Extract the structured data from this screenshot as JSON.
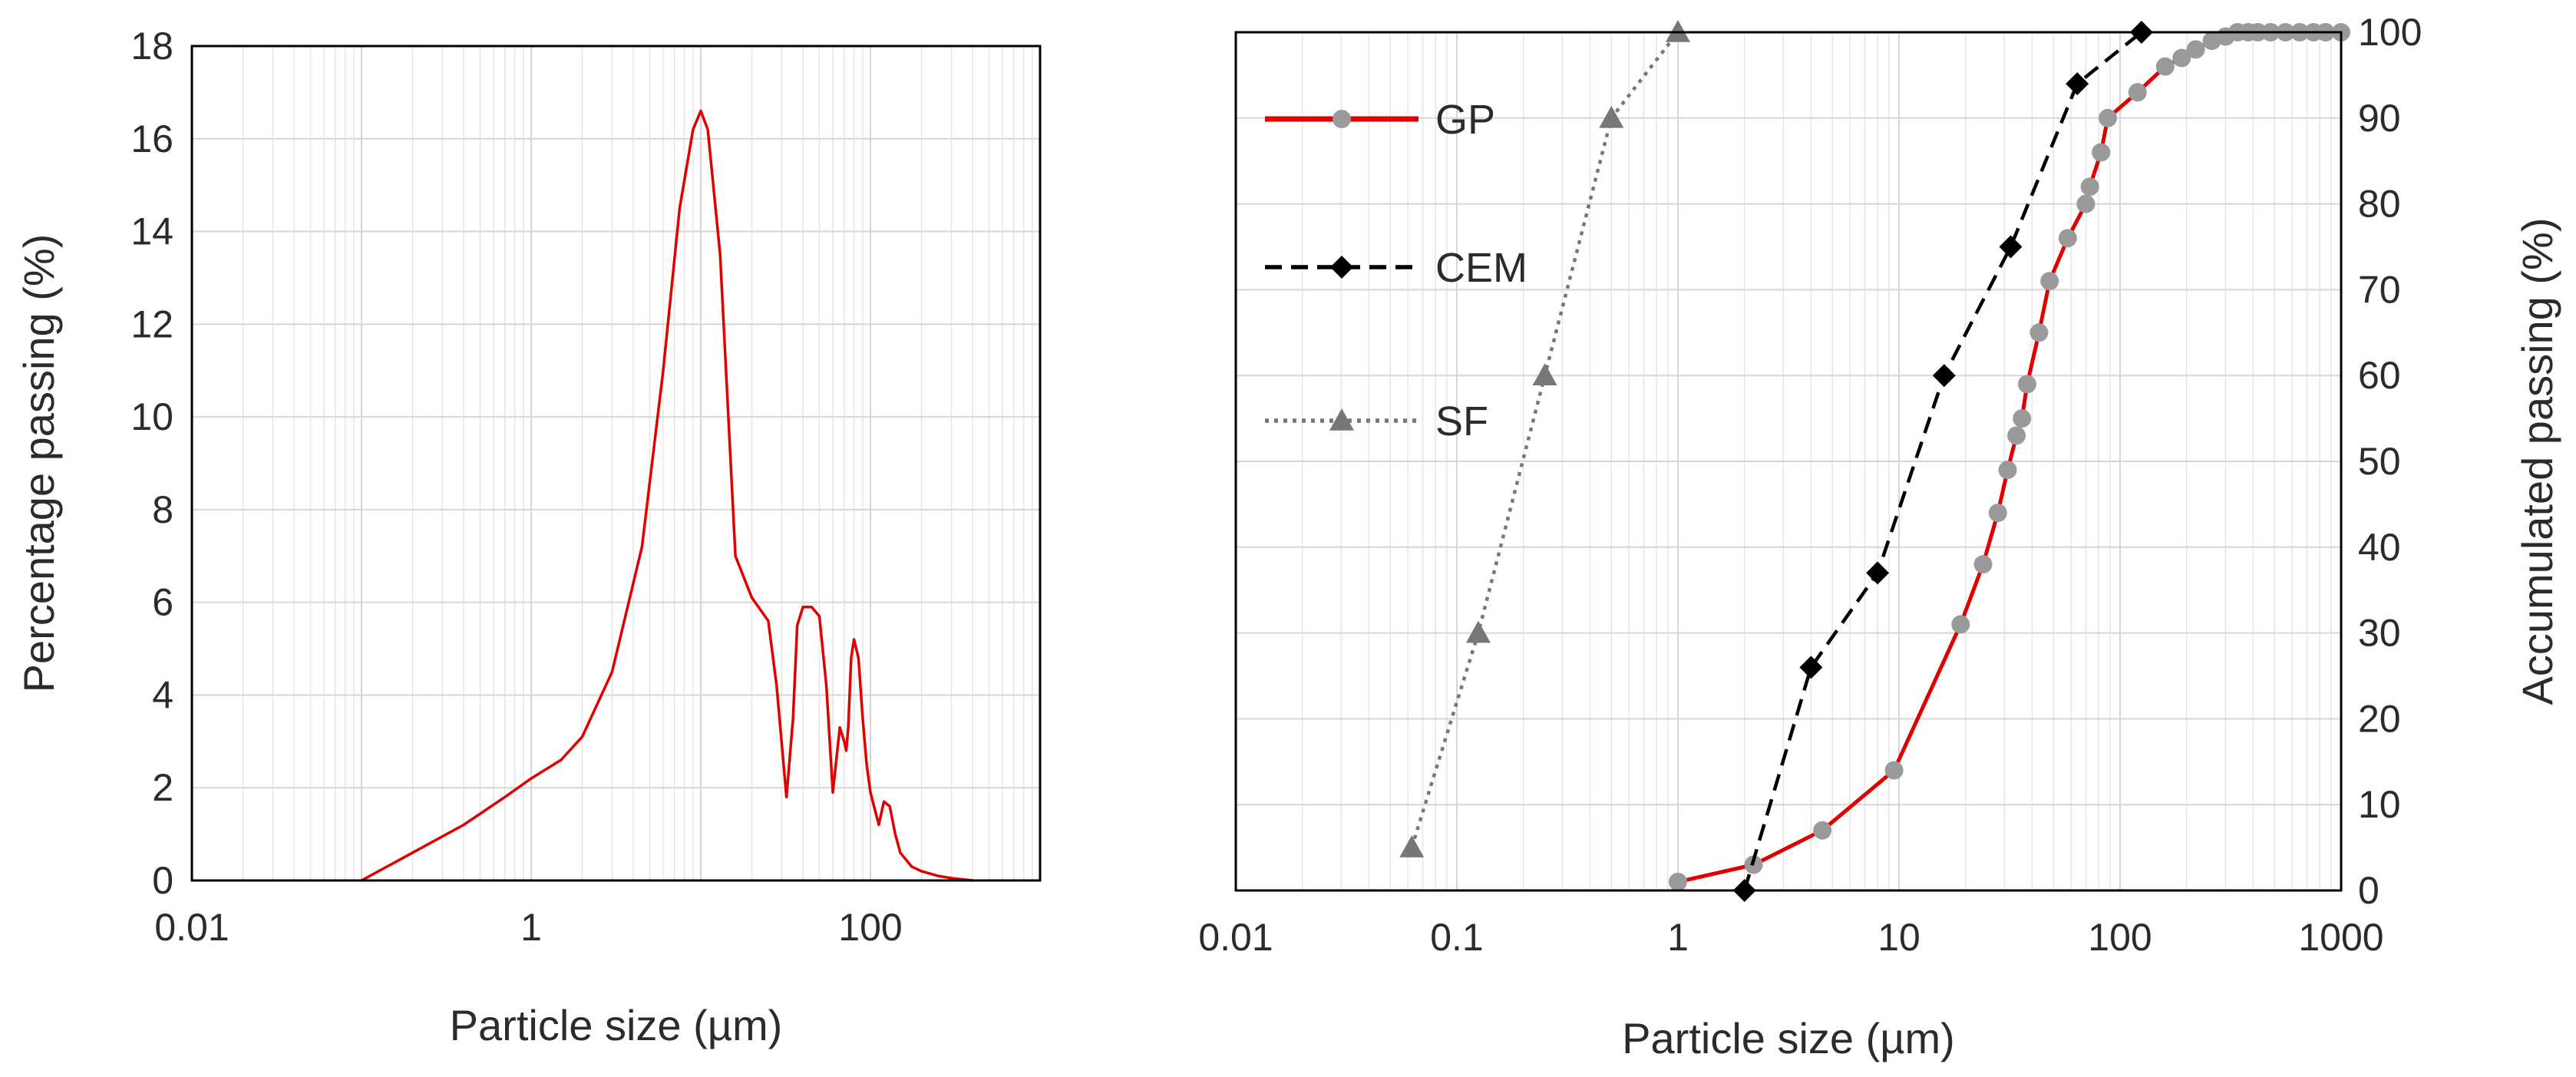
{
  "chart_data": [
    {
      "type": "line",
      "title": "",
      "xlabel": "Particle size (µm)",
      "ylabel": "Percentage passing (%)",
      "xscale": "log",
      "xlim": [
        0.01,
        1000
      ],
      "ylim": [
        0,
        18
      ],
      "xticks": [
        0.01,
        1,
        100
      ],
      "xtick_labels": [
        "0.01",
        "1",
        "100"
      ],
      "yticks": [
        0,
        2,
        4,
        6,
        8,
        10,
        12,
        14,
        16,
        18
      ],
      "ytick_labels": [
        "0",
        "2",
        "4",
        "6",
        "8",
        "10",
        "12",
        "14",
        "16",
        "18"
      ],
      "grid": true,
      "series": [
        {
          "name": "Percentage passing",
          "color": "#e00000",
          "x": [
            0.1,
            0.2,
            0.4,
            0.7,
            1.0,
            1.5,
            2.0,
            3.0,
            4.5,
            6.0,
            7.5,
            9.0,
            10.0,
            11.0,
            13.0,
            16.0,
            20.0,
            25.0,
            28.0,
            32.0,
            35.0,
            37.0,
            40.0,
            45.0,
            50.0,
            55.0,
            60.0,
            66.0,
            70.0,
            72.0,
            74.0,
            77.0,
            80.0,
            85.0,
            90.0,
            95.0,
            100.0,
            105.0,
            112.0,
            120.0,
            130.0,
            140.0,
            150.0,
            175.0,
            200.0,
            250.0,
            300.0,
            400.0
          ],
          "y": [
            0,
            0.6,
            1.2,
            1.8,
            2.2,
            2.6,
            3.1,
            4.5,
            7.2,
            11.0,
            14.5,
            16.2,
            16.6,
            16.2,
            13.5,
            7.0,
            6.1,
            5.6,
            4.2,
            1.8,
            3.5,
            5.5,
            5.9,
            5.9,
            5.7,
            4.2,
            1.9,
            3.3,
            3.0,
            2.8,
            3.3,
            4.8,
            5.2,
            4.8,
            3.5,
            2.5,
            1.9,
            1.6,
            1.2,
            1.7,
            1.6,
            1.0,
            0.6,
            0.3,
            0.2,
            0.1,
            0.05,
            0
          ]
        }
      ]
    },
    {
      "type": "line",
      "title": "",
      "xlabel": "Particle size (µm)",
      "ylabel": "Accumulated passing (%)",
      "xscale": "log",
      "xlim": [
        0.01,
        1000
      ],
      "ylim": [
        0,
        100
      ],
      "xticks": [
        0.01,
        0.1,
        1,
        10,
        100,
        1000
      ],
      "xtick_labels": [
        "0.01",
        "0.1",
        "1",
        "10",
        "100",
        "1000"
      ],
      "yticks": [
        0,
        10,
        20,
        30,
        40,
        50,
        60,
        70,
        80,
        90,
        100
      ],
      "ytick_labels": [
        "0",
        "10",
        "20",
        "30",
        "40",
        "50",
        "60",
        "70",
        "80",
        "90",
        "100"
      ],
      "y_axis_side": "right",
      "grid": true,
      "legend": "top-left",
      "series": [
        {
          "name": "GP",
          "color": "#e00000",
          "marker_color": "#9a9a9a",
          "marker": "circle",
          "line": "solid",
          "x": [
            1.0,
            2.2,
            4.5,
            9.5,
            19.0,
            24.0,
            28.0,
            31.0,
            34.0,
            36.0,
            38.0,
            43.0,
            48.0,
            58.0,
            70.0,
            73.0,
            82.0,
            88.0,
            120.0,
            160.0,
            190.0,
            220.0,
            260.0,
            300.0,
            340.0,
            380.0,
            420.0,
            480.0,
            560.0,
            650.0,
            750.0,
            850.0,
            1000.0
          ],
          "y": [
            1,
            3,
            7,
            14,
            31,
            38,
            44,
            49,
            53,
            55,
            59,
            65,
            71,
            76,
            80,
            82,
            86,
            90,
            93,
            96,
            97,
            98,
            99,
            99.5,
            100,
            100,
            100,
            100,
            100,
            100,
            100,
            100,
            100
          ]
        },
        {
          "name": "CEM",
          "color": "#000000",
          "marker_color": "#000000",
          "marker": "diamond",
          "line": "dashed",
          "x": [
            2.0,
            4.0,
            8.0,
            16.0,
            32.0,
            64.0,
            125.0
          ],
          "y": [
            0,
            26,
            37,
            60,
            75,
            94,
            100
          ]
        },
        {
          "name": "SF",
          "color": "#777777",
          "marker_color": "#777777",
          "marker": "triangle",
          "line": "dotted",
          "x": [
            0.0625,
            0.125,
            0.25,
            0.5,
            1.0
          ],
          "y": [
            5,
            30,
            60,
            90,
            100
          ]
        }
      ]
    }
  ]
}
